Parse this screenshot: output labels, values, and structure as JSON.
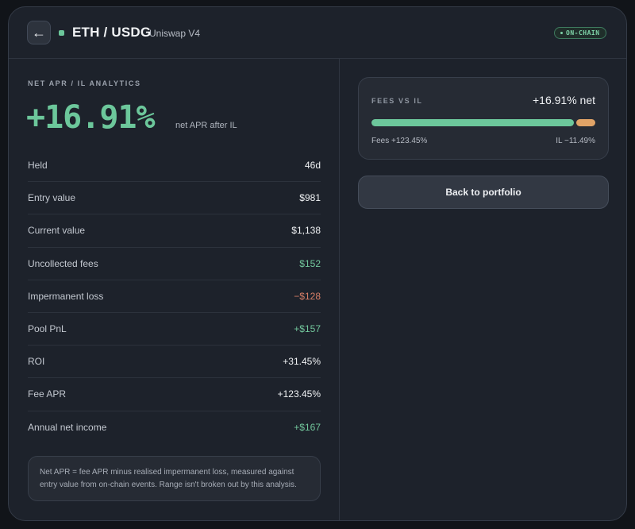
{
  "header": {
    "back_icon": "arrow-left-icon",
    "pair": "ETH / USDG",
    "protocol": "Uniswap V4",
    "badge": "ON-CHAIN"
  },
  "analytics": {
    "section_label": "NET APR / IL ANALYTICS",
    "net_apr": "+16.91%",
    "net_apr_caption": "net APR after IL",
    "rows": [
      {
        "label": "Held",
        "value": "46d",
        "tone": "neutral"
      },
      {
        "label": "Entry value",
        "value": "$981",
        "tone": "neutral"
      },
      {
        "label": "Current value",
        "value": "$1,138",
        "tone": "neutral"
      },
      {
        "label": "Uncollected fees",
        "value": "$152",
        "tone": "green"
      },
      {
        "label": "Impermanent loss",
        "value": "−$128",
        "tone": "red"
      },
      {
        "label": "Pool PnL",
        "value": "+$157",
        "tone": "green"
      },
      {
        "label": "ROI",
        "value": "+31.45%",
        "tone": "neutral"
      },
      {
        "label": "Fee APR",
        "value": "+123.45%",
        "tone": "neutral"
      },
      {
        "label": "Annual net income",
        "value": "+$167",
        "tone": "green"
      }
    ],
    "footnote": "Net APR = fee APR minus realised impermanent loss, measured against entry value from on-chain events. Range isn't broken out by this analysis."
  },
  "fees_vs_il": {
    "label": "FEES VS IL",
    "net": "+16.91% net",
    "fees_label": "Fees +123.45%",
    "il_label": "IL −11.49%",
    "fees_pct": 123.45,
    "il_pct": 11.49,
    "fees_color": "#6cc79b",
    "il_color": "#e0a367"
  },
  "actions": {
    "back_to_portfolio": "Back to portfolio"
  },
  "colors": {
    "accent_green": "#6cc79b",
    "loss_red": "#d97f67",
    "background": "#1d222b"
  }
}
